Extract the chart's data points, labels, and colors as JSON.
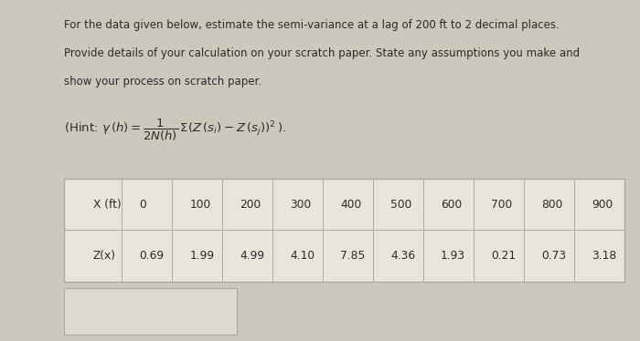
{
  "bg_color": "#cdc8be",
  "text_color": "#2a2a2a",
  "paragraph1": "For the data given below, estimate the semi-variance at a lag of 200 ft to 2 decimal places.",
  "paragraph2": "Provide details of your calculation on your scratch paper. State any assumptions you make and",
  "paragraph3": "show your process on scratch paper.",
  "x_label": "X (ft)",
  "x_values": [
    "0",
    "100",
    "200",
    "300",
    "400",
    "500",
    "600",
    "700",
    "800",
    "900"
  ],
  "z_label": "Z(x)",
  "z_values": [
    "0.69",
    "1.99",
    "4.99",
    "4.10",
    "7.85",
    "4.36",
    "1.93",
    "0.21",
    "0.73",
    "3.18"
  ],
  "table_bg": "#eae5da",
  "table_border": "#aaaaaa",
  "answer_box_bg": "#dedad2",
  "answer_box_border": "#aaaaaa",
  "font_size_text": 8.5,
  "font_size_table": 8.8,
  "font_size_hint": 9.5
}
